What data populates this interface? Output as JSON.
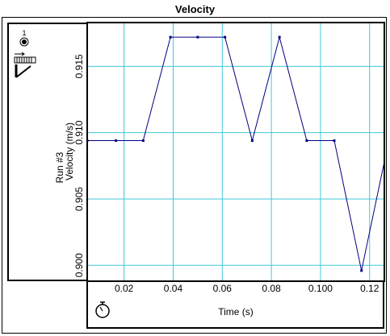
{
  "header": {
    "title": "Velocity"
  },
  "left_panel": {
    "run_number": "1"
  },
  "chart_data": {
    "type": "line",
    "title": "Velocity",
    "xlabel": "Time (s)",
    "ylabel_run": "Run #3",
    "ylabel": "Velocity (m/s)",
    "xlim": [
      0.005,
      0.126
    ],
    "ylim": [
      0.8988,
      0.9183
    ],
    "xticks": [
      0.02,
      0.04,
      0.06,
      0.08,
      0.1,
      0.12
    ],
    "xtick_labels": [
      "0.02",
      "0.04",
      "0.06",
      "0.08",
      "0.100",
      "0.12"
    ],
    "yticks": [
      0.9,
      0.905,
      0.91,
      0.915
    ],
    "ytick_labels": [
      "0.900",
      "0.905",
      "0.910",
      "0.915"
    ],
    "grid": true,
    "series": [
      {
        "color": "#000080",
        "x": [
          0.005,
          0.0167,
          0.0278,
          0.0389,
          0.05,
          0.0611,
          0.0722,
          0.0833,
          0.0944,
          0.1056,
          0.1167,
          0.1278
        ],
        "y": [
          0.9094,
          0.9094,
          0.9094,
          0.9172,
          0.9172,
          0.9172,
          0.9094,
          0.9172,
          0.9094,
          0.9094,
          0.8996,
          0.9094
        ]
      }
    ],
    "colors": {
      "grid": "#3FC8D8",
      "line": "#000080",
      "frame": "#000000"
    }
  }
}
